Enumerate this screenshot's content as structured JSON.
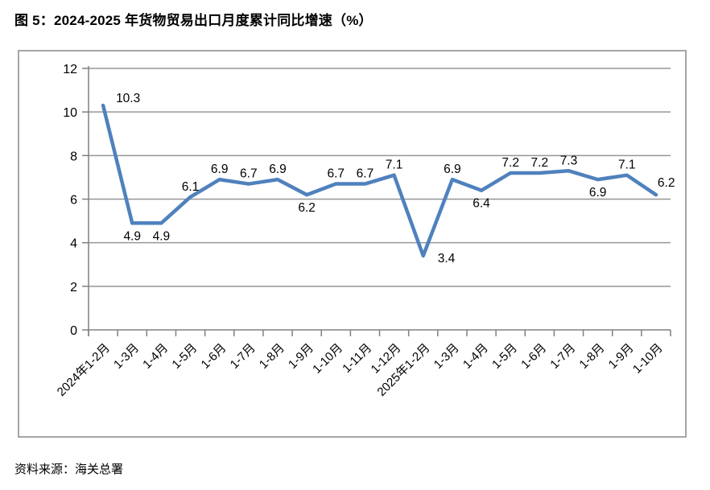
{
  "title": "图 5：2024-2025 年货物贸易出口月度累计同比增速（%）",
  "source": "资料来源：海关总署",
  "chart_data": {
    "type": "line",
    "title": "图 5：2024-2025 年货物贸易出口月度累计同比增速（%）",
    "xlabel": "",
    "ylabel": "",
    "categories": [
      "2024年1-2月",
      "1-3月",
      "1-4月",
      "1-5月",
      "1-6月",
      "1-7月",
      "1-8月",
      "1-9月",
      "1-10月",
      "1-11月",
      "1-12月",
      "2025年1-2月",
      "1-3月",
      "1-4月",
      "1-5月",
      "1-6月",
      "1-7月",
      "1-8月",
      "1-9月",
      "1-10月"
    ],
    "values": [
      10.3,
      4.9,
      4.9,
      6.1,
      6.9,
      6.7,
      6.9,
      6.2,
      6.7,
      6.7,
      7.1,
      3.4,
      6.9,
      6.4,
      7.2,
      7.2,
      7.3,
      6.9,
      7.1,
      6.2
    ],
    "ylim": [
      0,
      12
    ],
    "yticks": [
      0,
      2,
      4,
      6,
      8,
      10,
      12
    ],
    "grid": true,
    "legend": "none",
    "line_color": "#4f81bd",
    "grid_color": "#969696",
    "axis_color": "#808080",
    "label_positions": [
      "right-up",
      "below",
      "below",
      "above",
      "above",
      "above",
      "above",
      "below",
      "above",
      "above",
      "above",
      "right",
      "above",
      "below",
      "above",
      "above",
      "above",
      "below",
      "above",
      "above-right"
    ]
  }
}
